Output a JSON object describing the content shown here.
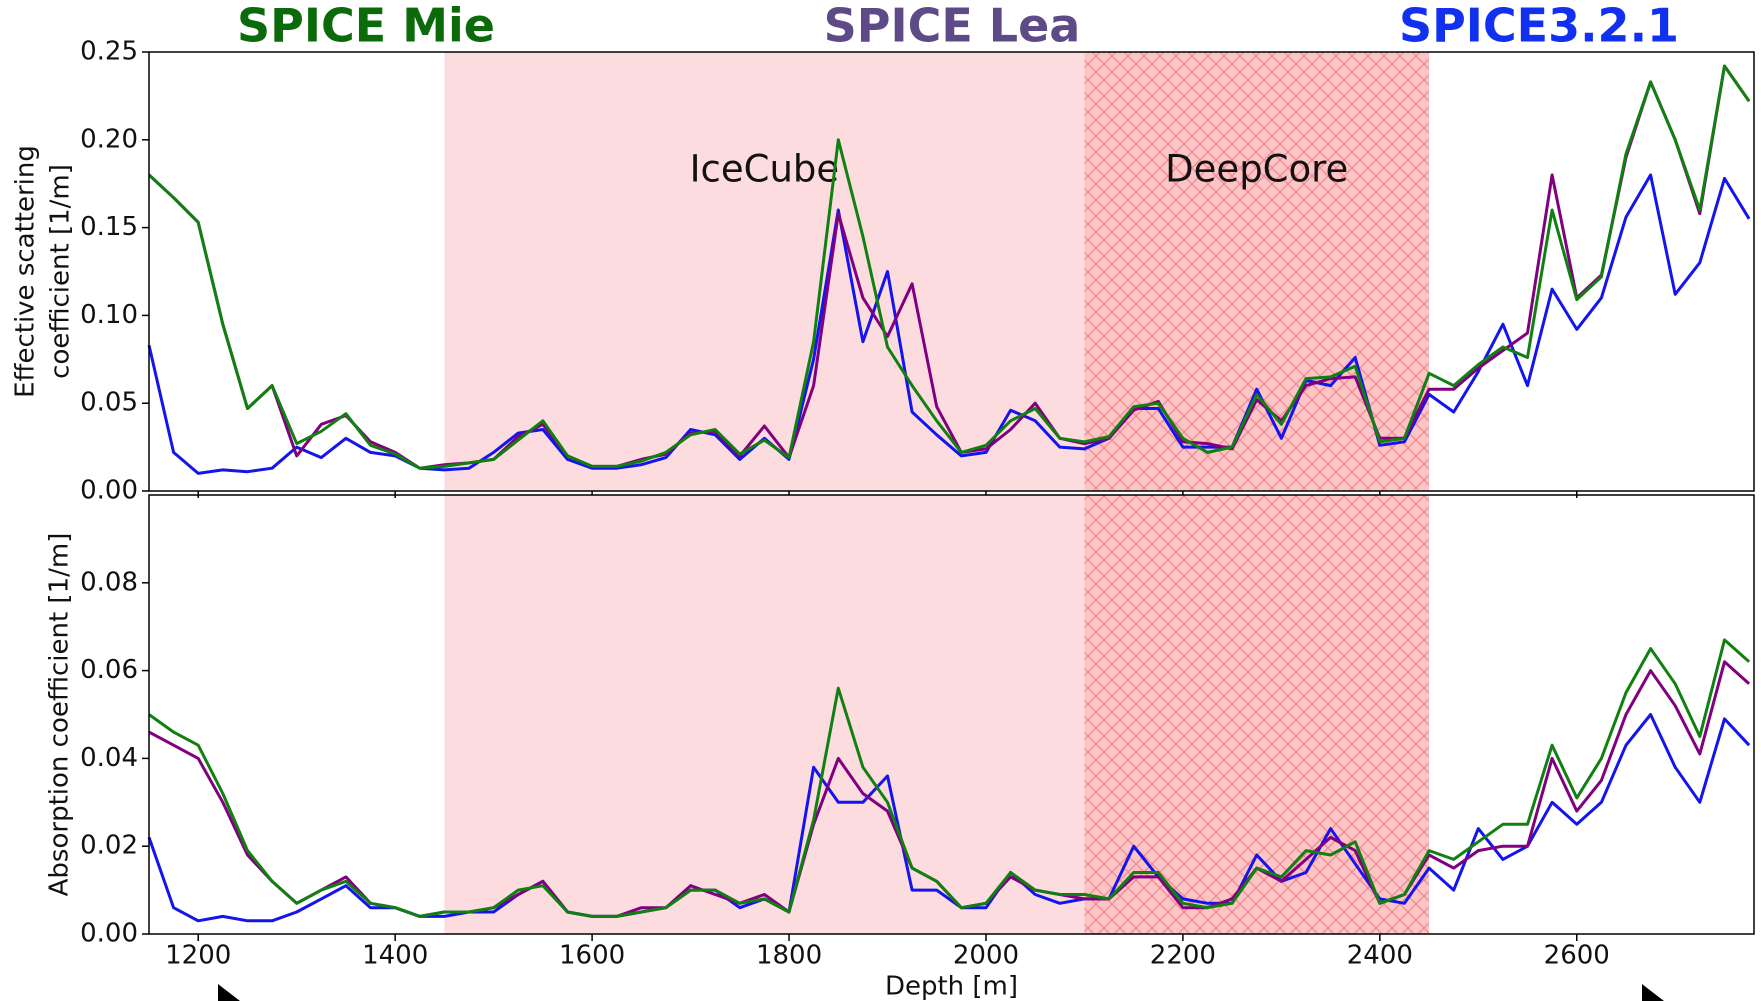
{
  "chart_data": [
    {
      "type": "line",
      "x": [
        1150,
        1175,
        1200,
        1225,
        1250,
        1275,
        1300,
        1325,
        1350,
        1375,
        1400,
        1425,
        1450,
        1475,
        1500,
        1525,
        1550,
        1575,
        1600,
        1625,
        1650,
        1675,
        1700,
        1725,
        1750,
        1775,
        1800,
        1825,
        1850,
        1875,
        1900,
        1925,
        1950,
        1975,
        2000,
        2025,
        2050,
        2075,
        2100,
        2125,
        2150,
        2175,
        2200,
        2225,
        2250,
        2275,
        2300,
        2325,
        2350,
        2375,
        2400,
        2425,
        2450,
        2475,
        2500,
        2525,
        2550,
        2575,
        2600,
        2625,
        2650,
        2675,
        2700,
        2725,
        2750,
        2775
      ],
      "ylabel": [
        "Effective scattering",
        "coefficient [1/m]"
      ],
      "series": [
        {
          "name": "SPICE Mie",
          "color": "#118011",
          "values": [
            0.18,
            0.167,
            0.153,
            0.095,
            0.047,
            0.06,
            0.027,
            0.034,
            0.044,
            0.026,
            0.021,
            0.013,
            0.014,
            0.016,
            0.018,
            0.029,
            0.04,
            0.02,
            0.014,
            0.014,
            0.017,
            0.022,
            0.032,
            0.035,
            0.021,
            0.029,
            0.019,
            0.085,
            0.2,
            0.145,
            0.082,
            0.06,
            0.04,
            0.022,
            0.026,
            0.04,
            0.047,
            0.03,
            0.028,
            0.031,
            0.048,
            0.05,
            0.03,
            0.022,
            0.025,
            0.055,
            0.038,
            0.064,
            0.065,
            0.071,
            0.028,
            0.03,
            0.067,
            0.06,
            0.072,
            0.082,
            0.076,
            0.16,
            0.109,
            0.122,
            0.192,
            0.233,
            0.2,
            0.16,
            0.242,
            0.222
          ]
        },
        {
          "name": "SPICE Lea",
          "color": "#800080",
          "values": [
            0.18,
            0.167,
            0.153,
            0.095,
            0.047,
            0.06,
            0.02,
            0.038,
            0.043,
            0.028,
            0.022,
            0.013,
            0.015,
            0.016,
            0.018,
            0.031,
            0.038,
            0.02,
            0.014,
            0.014,
            0.018,
            0.021,
            0.033,
            0.034,
            0.02,
            0.037,
            0.019,
            0.06,
            0.158,
            0.11,
            0.088,
            0.118,
            0.048,
            0.022,
            0.024,
            0.035,
            0.05,
            0.03,
            0.027,
            0.03,
            0.046,
            0.051,
            0.028,
            0.027,
            0.024,
            0.052,
            0.04,
            0.06,
            0.064,
            0.065,
            0.03,
            0.03,
            0.058,
            0.058,
            0.07,
            0.08,
            0.09,
            0.18,
            0.11,
            0.123,
            0.19,
            0.233,
            0.2,
            0.158,
            0.242,
            0.222
          ]
        },
        {
          "name": "SPICE3.2.1",
          "color": "#1414ee",
          "values": [
            0.083,
            0.022,
            0.01,
            0.012,
            0.011,
            0.013,
            0.025,
            0.019,
            0.03,
            0.022,
            0.02,
            0.013,
            0.012,
            0.013,
            0.022,
            0.033,
            0.035,
            0.018,
            0.013,
            0.013,
            0.015,
            0.019,
            0.035,
            0.032,
            0.018,
            0.03,
            0.018,
            0.075,
            0.16,
            0.085,
            0.125,
            0.045,
            0.032,
            0.02,
            0.022,
            0.046,
            0.04,
            0.025,
            0.024,
            0.03,
            0.047,
            0.047,
            0.025,
            0.025,
            0.025,
            0.058,
            0.03,
            0.063,
            0.06,
            0.076,
            0.026,
            0.028,
            0.055,
            0.045,
            0.068,
            0.095,
            0.06,
            0.115,
            0.092,
            0.11,
            0.156,
            0.18,
            0.112,
            0.13,
            0.178,
            0.155
          ]
        }
      ],
      "regions": [
        {
          "label": "IceCube",
          "from": 1450,
          "to": 2100
        },
        {
          "label": "DeepCore",
          "from": 2100,
          "to": 2450,
          "hatch": true
        }
      ],
      "xlim": [
        1150,
        2780
      ],
      "xticks": [
        1200,
        1400,
        1600,
        1800,
        2000,
        2200,
        2400,
        2600
      ],
      "ylim": [
        0,
        0.25
      ],
      "yticks": [
        {
          "value": 0,
          "label": "0.00"
        },
        {
          "value": 0.05,
          "label": "0.05"
        },
        {
          "value": 0.1,
          "label": "0.10"
        },
        {
          "value": 0.15,
          "label": "0.15"
        },
        {
          "value": 0.2,
          "label": "0.20"
        },
        {
          "value": 0.25,
          "label": "0.25"
        }
      ]
    },
    {
      "type": "line",
      "x": [
        1150,
        1175,
        1200,
        1225,
        1250,
        1275,
        1300,
        1325,
        1350,
        1375,
        1400,
        1425,
        1450,
        1475,
        1500,
        1525,
        1550,
        1575,
        1600,
        1625,
        1650,
        1675,
        1700,
        1725,
        1750,
        1775,
        1800,
        1825,
        1850,
        1875,
        1900,
        1925,
        1950,
        1975,
        2000,
        2025,
        2050,
        2075,
        2100,
        2125,
        2150,
        2175,
        2200,
        2225,
        2250,
        2275,
        2300,
        2325,
        2350,
        2375,
        2400,
        2425,
        2450,
        2475,
        2500,
        2525,
        2550,
        2575,
        2600,
        2625,
        2650,
        2675,
        2700,
        2725,
        2750,
        2775
      ],
      "xlabel": "Depth [m]",
      "ylabel": "Absorption coefficient [1/m]",
      "series": [
        {
          "color": "#118011",
          "values": [
            0.05,
            0.046,
            0.043,
            0.032,
            0.019,
            0.012,
            0.007,
            0.01,
            0.012,
            0.007,
            0.006,
            0.004,
            0.005,
            0.005,
            0.006,
            0.01,
            0.011,
            0.005,
            0.004,
            0.004,
            0.005,
            0.006,
            0.01,
            0.01,
            0.007,
            0.008,
            0.005,
            0.026,
            0.056,
            0.038,
            0.03,
            0.015,
            0.012,
            0.006,
            0.007,
            0.014,
            0.01,
            0.009,
            0.009,
            0.008,
            0.014,
            0.014,
            0.007,
            0.006,
            0.007,
            0.015,
            0.013,
            0.019,
            0.018,
            0.021,
            0.007,
            0.009,
            0.019,
            0.017,
            0.021,
            0.025,
            0.025,
            0.043,
            0.031,
            0.04,
            0.055,
            0.065,
            0.057,
            0.045,
            0.067,
            0.062
          ]
        },
        {
          "color": "#800080",
          "values": [
            0.046,
            0.043,
            0.04,
            0.03,
            0.018,
            0.012,
            0.007,
            0.01,
            0.013,
            0.007,
            0.006,
            0.004,
            0.005,
            0.005,
            0.006,
            0.009,
            0.012,
            0.005,
            0.004,
            0.004,
            0.006,
            0.006,
            0.011,
            0.009,
            0.007,
            0.009,
            0.005,
            0.025,
            0.04,
            0.032,
            0.028,
            0.015,
            0.012,
            0.006,
            0.007,
            0.013,
            0.01,
            0.009,
            0.008,
            0.008,
            0.013,
            0.013,
            0.006,
            0.006,
            0.008,
            0.015,
            0.012,
            0.017,
            0.022,
            0.019,
            0.007,
            0.009,
            0.018,
            0.015,
            0.019,
            0.02,
            0.02,
            0.04,
            0.028,
            0.035,
            0.05,
            0.06,
            0.052,
            0.041,
            0.062,
            0.057
          ]
        },
        {
          "color": "#1414ee",
          "values": [
            0.022,
            0.006,
            0.003,
            0.004,
            0.003,
            0.003,
            0.005,
            0.008,
            0.011,
            0.006,
            0.006,
            0.004,
            0.004,
            0.005,
            0.005,
            0.009,
            0.012,
            0.005,
            0.004,
            0.004,
            0.005,
            0.006,
            0.01,
            0.01,
            0.006,
            0.008,
            0.005,
            0.038,
            0.03,
            0.03,
            0.036,
            0.01,
            0.01,
            0.006,
            0.006,
            0.014,
            0.009,
            0.007,
            0.008,
            0.008,
            0.02,
            0.013,
            0.008,
            0.007,
            0.007,
            0.018,
            0.012,
            0.014,
            0.024,
            0.016,
            0.008,
            0.007,
            0.015,
            0.01,
            0.024,
            0.017,
            0.02,
            0.03,
            0.025,
            0.03,
            0.043,
            0.05,
            0.038,
            0.03,
            0.049,
            0.043
          ]
        }
      ],
      "xlim": [
        1150,
        2780
      ],
      "xticks": [
        1200,
        1400,
        1600,
        1800,
        2000,
        2200,
        2400,
        2600
      ],
      "ylim": [
        0,
        0.1
      ],
      "yticks": [
        {
          "value": 0,
          "label": "0.00"
        },
        {
          "value": 0.02,
          "label": "0.02"
        },
        {
          "value": 0.04,
          "label": "0.04"
        },
        {
          "value": 0.06,
          "label": "0.06"
        },
        {
          "value": 0.08,
          "label": "0.08"
        }
      ]
    }
  ]
}
